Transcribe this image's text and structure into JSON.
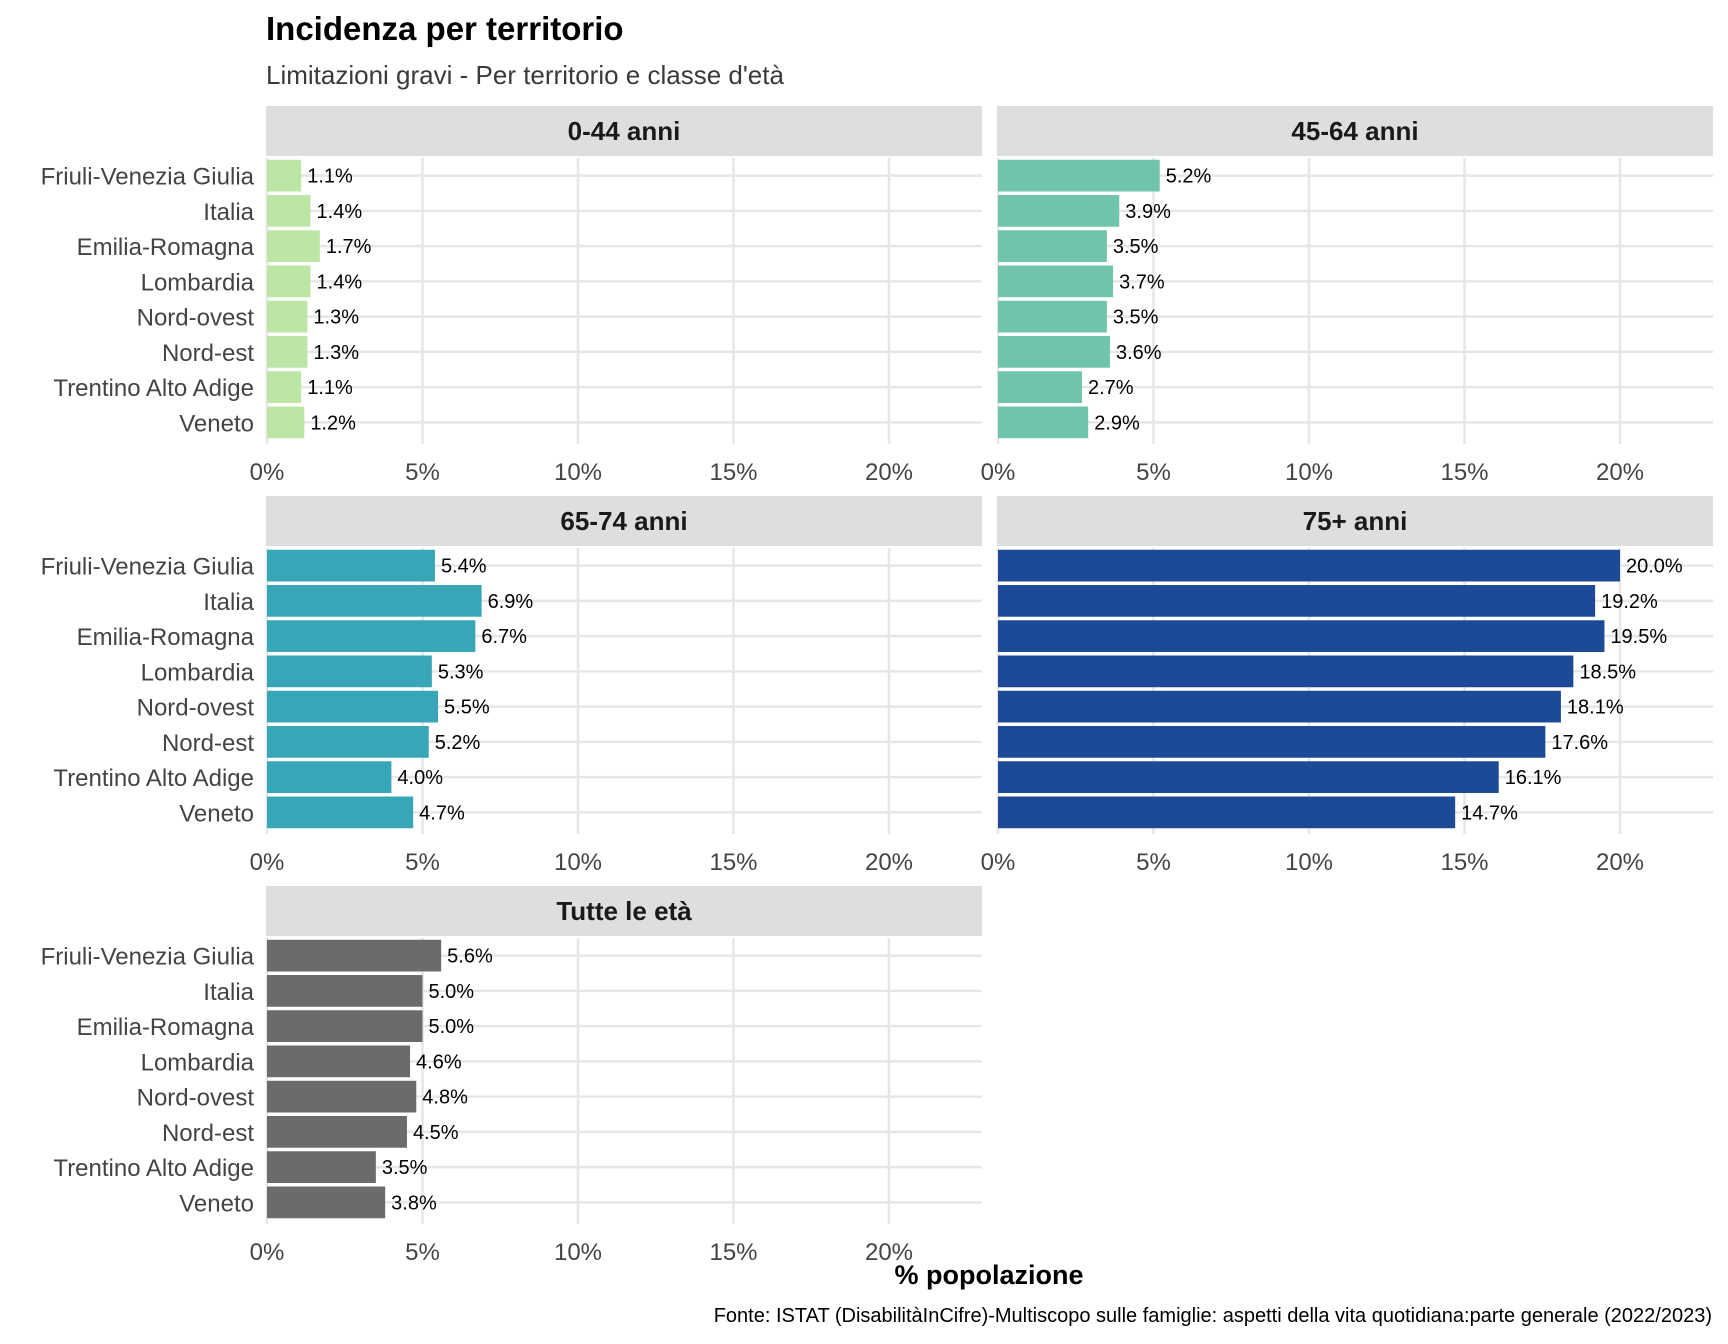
{
  "chart_data": {
    "type": "bar",
    "orientation": "horizontal",
    "title": "Incidenza per territorio",
    "subtitle": "Limitazioni gravi - Per territorio e classe d'età",
    "xlabel": "% popolazione",
    "ylabel": "",
    "caption": "Fonte: ISTAT (DisabilitàInCifre)-Multiscopo sulle famiglie: aspetti della vita quotidiana:parte generale (2022/2023)",
    "xlim": [
      0,
      23
    ],
    "x_ticks": [
      0,
      5,
      10,
      15,
      20
    ],
    "x_tick_labels": [
      "0%",
      "5%",
      "10%",
      "15%",
      "20%"
    ],
    "grid": true,
    "legend": "none",
    "categories": [
      "Friuli-Venezia Giulia",
      "Italia",
      "Emilia-Romagna",
      "Lombardia",
      "Nord-ovest",
      "Nord-est",
      "Trentino Alto Adige",
      "Veneto"
    ],
    "facets": [
      {
        "name": "0-44 anni",
        "color": "#bde5a6",
        "values": [
          1.1,
          1.4,
          1.7,
          1.4,
          1.3,
          1.3,
          1.1,
          1.2
        ],
        "labels": [
          "1.1%",
          "1.4%",
          "1.7%",
          "1.4%",
          "1.3%",
          "1.3%",
          "1.1%",
          "1.2%"
        ]
      },
      {
        "name": "45-64 anni",
        "color": "#6fc4ab",
        "values": [
          5.2,
          3.9,
          3.5,
          3.7,
          3.5,
          3.6,
          2.7,
          2.9
        ],
        "labels": [
          "5.2%",
          "3.9%",
          "3.5%",
          "3.7%",
          "3.5%",
          "3.6%",
          "2.7%",
          "2.9%"
        ]
      },
      {
        "name": "65-74 anni",
        "color": "#37a7b8",
        "values": [
          5.4,
          6.9,
          6.7,
          5.3,
          5.5,
          5.2,
          4.0,
          4.7
        ],
        "labels": [
          "5.4%",
          "6.9%",
          "6.7%",
          "5.3%",
          "5.5%",
          "5.2%",
          "4.0%",
          "4.7%"
        ]
      },
      {
        "name": "75+ anni",
        "color": "#1d4a96",
        "values": [
          20.0,
          19.2,
          19.5,
          18.5,
          18.1,
          17.6,
          16.1,
          14.7
        ],
        "labels": [
          "20.0%",
          "19.2%",
          "19.5%",
          "18.5%",
          "18.1%",
          "17.6%",
          "16.1%",
          "14.7%"
        ]
      },
      {
        "name": "Tutte le età",
        "color": "#6b6b6b",
        "values": [
          5.6,
          5.0,
          5.0,
          4.6,
          4.8,
          4.5,
          3.5,
          3.8
        ],
        "labels": [
          "5.6%",
          "5.0%",
          "5.0%",
          "4.6%",
          "4.8%",
          "4.5%",
          "3.5%",
          "3.8%"
        ]
      }
    ]
  }
}
